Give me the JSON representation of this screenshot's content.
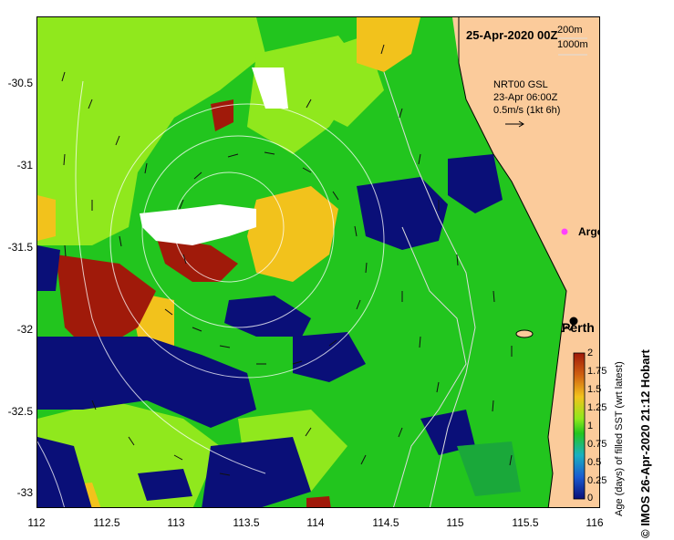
{
  "map": {
    "date_title": "25-Apr-2020 00Z",
    "depth_legend": [
      "200m",
      "1000m"
    ],
    "current_info": [
      "NRT00 GSL",
      "23-Apr 06:00Z",
      "0.5m/s (1kt 6h)"
    ],
    "places": {
      "argo": "Argo",
      "perth": "Perth"
    }
  },
  "axes": {
    "x_ticks": [
      "112",
      "112.5",
      "113",
      "113.5",
      "114",
      "114.5",
      "115",
      "115.5",
      "116"
    ],
    "y_ticks": [
      "-30.5",
      "-31",
      "-31.5",
      "-32",
      "-32.5",
      "-33"
    ]
  },
  "colorbar": {
    "title": "Age (days) of filled SST (wrt latest)",
    "ticks": [
      "2",
      "1.75",
      "1.5",
      "1.25",
      "1",
      "0.75",
      "0.5",
      "0.25",
      "0"
    ]
  },
  "credit": "© IMOS 26-Apr-2020 21:12 Hobart",
  "colors": {
    "land": "#fbcb9b",
    "green": "#22c51e",
    "lime": "#90e81d",
    "yellow": "#f2c21c",
    "brown": "#a01a0a",
    "navy": "#0a0f78",
    "white": "#ffffff"
  }
}
